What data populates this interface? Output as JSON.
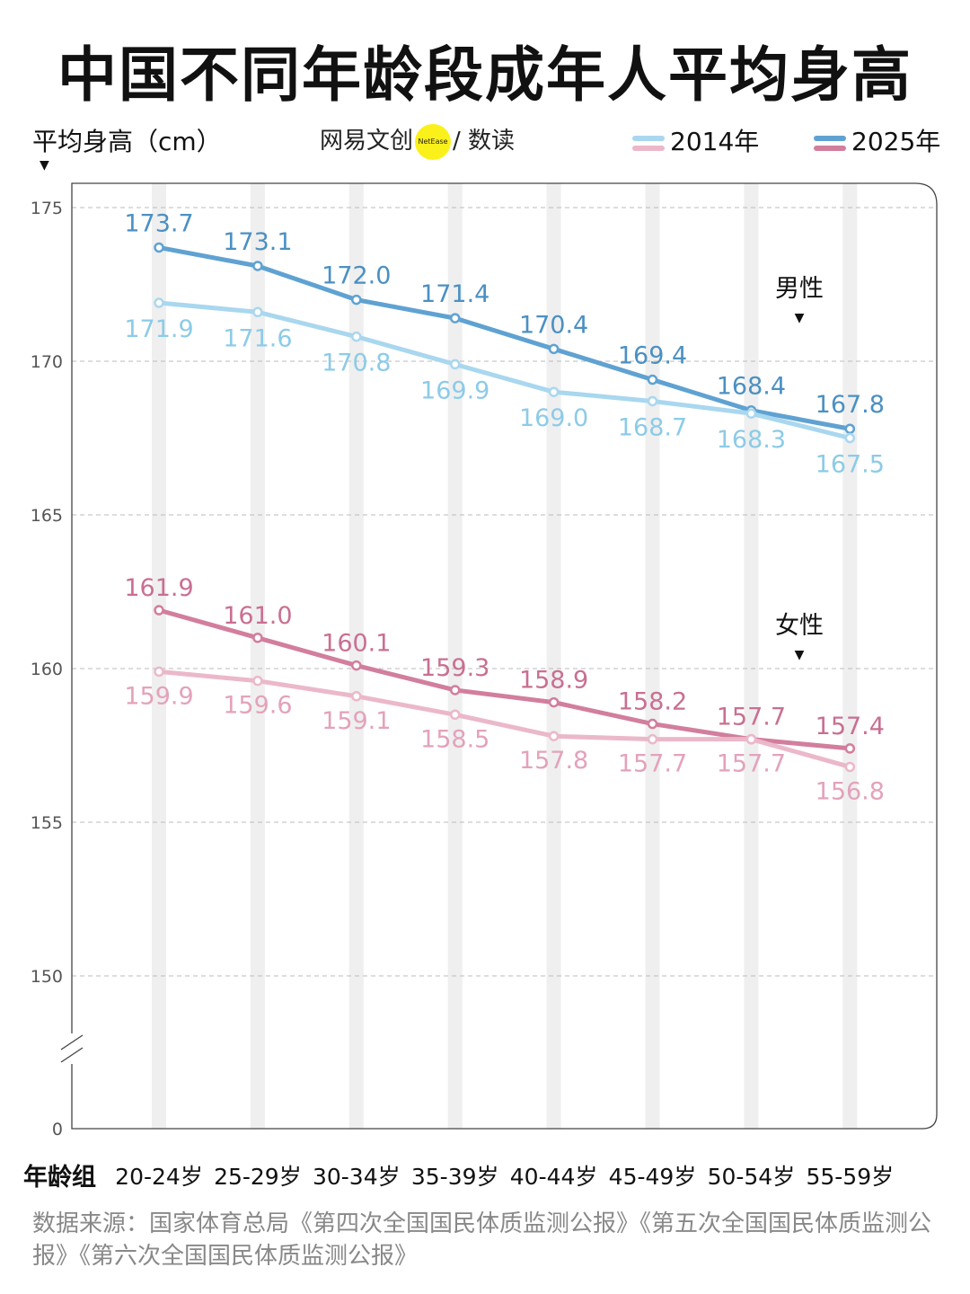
{
  "title": "中国不同年龄段成年人平均身高",
  "logo": {
    "text_left": "网易文创",
    "badge": "NetEase",
    "text_right": "/ 数读"
  },
  "colors": {
    "male_2025": "#5fa2d2",
    "male_2014": "#a9d7ef",
    "female_2025": "#d27e9d",
    "female_2014": "#ebb8ca",
    "male_label_2025": "#4b90c2",
    "male_label_2014": "#8ccbe8",
    "female_label_2025": "#c96f92",
    "female_label_2014": "#e3a2bb"
  },
  "source": "数据来源：国家体育总局《第四次全国国民体质监测公报》《第五次全国国民体质监测公报》《第六次全国国民体质监测公报》",
  "chart_data": {
    "type": "line",
    "title": "中国不同年龄段成年人平均身高",
    "ylabel": "平均身高（cm）",
    "xlabel": "年龄组",
    "categories": [
      "20-24岁",
      "25-29岁",
      "30-34岁",
      "35-39岁",
      "40-44岁",
      "45-49岁",
      "50-54岁",
      "55-59岁"
    ],
    "yticks": [
      0,
      150,
      155,
      160,
      165,
      170,
      175
    ],
    "ylim": [
      150,
      175
    ],
    "axis_break": true,
    "grid": true,
    "legend": {
      "placement": "top-right",
      "entries": [
        "2014年",
        "2025年"
      ]
    },
    "group_labels": [
      "男性",
      "女性"
    ],
    "series": [
      {
        "name": "2025年",
        "group": "男性",
        "values": [
          173.7,
          173.1,
          172.0,
          171.4,
          170.4,
          169.4,
          168.4,
          167.8
        ]
      },
      {
        "name": "2014年",
        "group": "男性",
        "values": [
          171.9,
          171.6,
          170.8,
          169.9,
          169.0,
          168.7,
          168.3,
          167.5
        ]
      },
      {
        "name": "2025年",
        "group": "女性",
        "values": [
          161.9,
          161.0,
          160.1,
          159.3,
          158.9,
          158.2,
          157.7,
          157.4
        ]
      },
      {
        "name": "2014年",
        "group": "女性",
        "values": [
          159.9,
          159.6,
          159.1,
          158.5,
          157.8,
          157.7,
          157.7,
          156.8
        ]
      }
    ]
  }
}
